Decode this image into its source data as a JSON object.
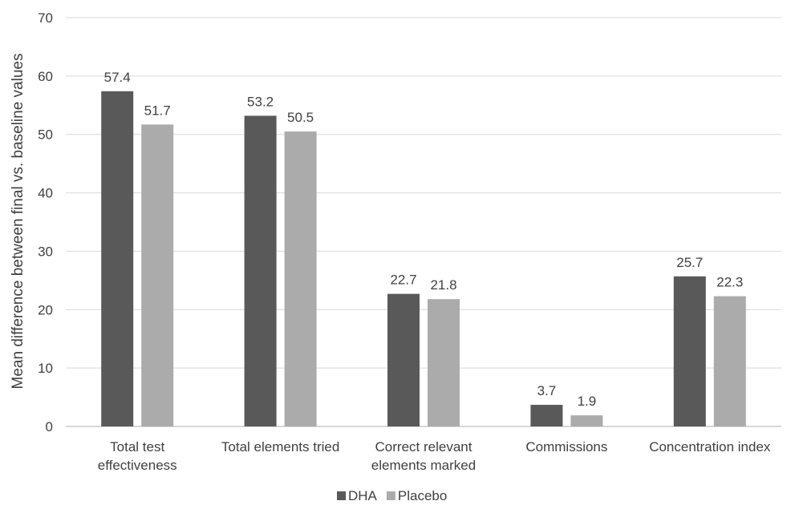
{
  "chart_data": {
    "type": "bar",
    "title": "",
    "xlabel": "",
    "ylabel": "Mean difference between final vs. baseline values",
    "ylim": [
      0,
      70
    ],
    "yticks": [
      0,
      10,
      20,
      30,
      40,
      50,
      60,
      70
    ],
    "grid": true,
    "legend_position": "bottom",
    "categories": [
      [
        "Total test",
        "effectiveness"
      ],
      [
        "Total elements tried"
      ],
      [
        "Correct relevant",
        "elements marked"
      ],
      [
        "Commissions"
      ],
      [
        "Concentration index"
      ]
    ],
    "series": [
      {
        "name": "DHA",
        "color": "#595959",
        "values": [
          57.4,
          53.2,
          22.7,
          3.7,
          25.7
        ],
        "labels": [
          "57.4",
          "53.2",
          "22.7",
          "3.7",
          "25.7"
        ]
      },
      {
        "name": "Placebo",
        "color": "#ababab",
        "values": [
          51.7,
          50.5,
          21.8,
          1.9,
          22.3
        ],
        "labels": [
          "51.7",
          "50.5",
          "21.8",
          "1.9",
          "22.3"
        ]
      }
    ]
  }
}
